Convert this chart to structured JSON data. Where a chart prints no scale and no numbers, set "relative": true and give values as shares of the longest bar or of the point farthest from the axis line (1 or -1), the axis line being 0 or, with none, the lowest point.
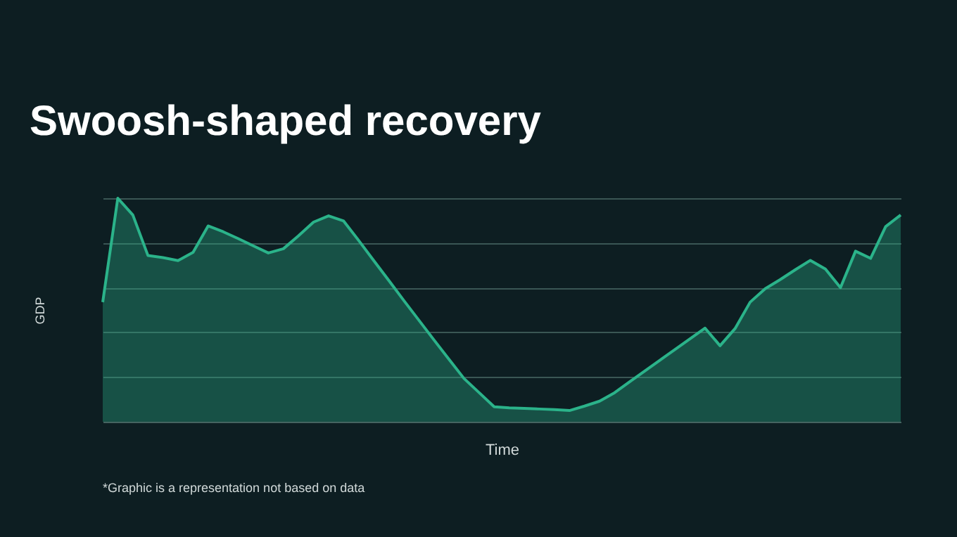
{
  "chart_data": {
    "type": "area",
    "title": "Swoosh-shaped recovery",
    "xlabel": "Time",
    "ylabel": "GDP",
    "annotations": [
      "*Graphic is a representation not based on data"
    ],
    "relative": true,
    "grid": "y",
    "tick_labels": false,
    "categories": [
      null,
      null,
      null,
      null,
      null,
      null,
      null,
      null,
      null,
      null,
      null,
      null,
      null,
      null,
      null,
      null,
      null,
      null,
      null,
      null,
      null,
      null,
      null,
      null,
      null,
      null,
      null,
      null,
      null,
      null,
      null,
      null,
      null,
      null,
      null,
      null,
      null,
      null,
      null,
      null,
      null,
      null,
      null,
      null,
      null,
      null,
      null,
      null,
      null,
      null,
      null,
      null,
      null,
      null
    ],
    "series": [
      {
        "color": "#2bb38a",
        "values": [
          0.535,
          1.0,
          0.925,
          0.744,
          0.734,
          0.721,
          0.758,
          0.876,
          0.85,
          0.819,
          0.787,
          0.755,
          0.774,
          0.832,
          0.893,
          0.921,
          0.898,
          0.811,
          0.721,
          0.632,
          0.542,
          0.454,
          0.366,
          0.279,
          0.193,
          0.13,
          0.067,
          0.062,
          0.06,
          0.057,
          0.054,
          0.05,
          0.07,
          0.092,
          0.13,
          0.179,
          0.227,
          0.275,
          0.323,
          0.371,
          0.419,
          0.34,
          0.417,
          0.535,
          0.595,
          0.636,
          0.68,
          0.722,
          0.683,
          0.6,
          0.763,
          0.731,
          0.873,
          0.925
        ]
      }
    ]
  }
}
